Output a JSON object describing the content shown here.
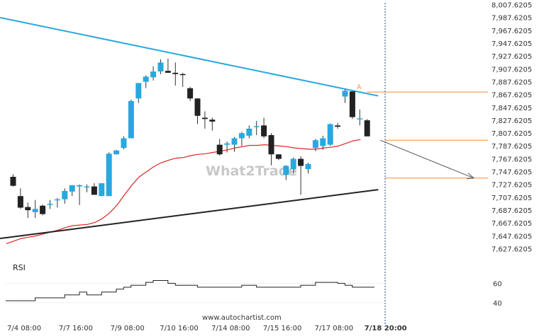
{
  "chart_data": {
    "type": "candlestick",
    "price_axis": {
      "min": 7627.6205,
      "max": 8007.6205,
      "step": 20,
      "tick_labels": [
        "8,007.6205",
        "7,987.6205",
        "7,967.6205",
        "7,947.6205",
        "7,927.6205",
        "7,907.6205",
        "7,887.6205",
        "7,867.6205",
        "7,847.6205",
        "7,827.6205",
        "7,807.6205",
        "7,787.6205",
        "7,767.6205",
        "7,747.6205",
        "7,727.6205",
        "7,707.6205",
        "7,687.6205",
        "7,667.6205",
        "7,647.6205",
        "7,627.6205"
      ]
    },
    "time_axis": {
      "labels": [
        "7/4 08:00",
        "7/7 16:00",
        "7/9 08:00",
        "7/10 16:00",
        "7/14 08:00",
        "7/15 16:00",
        "7/17 08:00",
        "7/18 20:00"
      ],
      "label_bar_index": [
        1.5,
        8.5,
        15.5,
        22.5,
        29.5,
        36.5,
        43.5,
        50.5
      ],
      "highlighted": "7/18 20:00"
    },
    "candles": [
      {
        "o": 7740,
        "h": 7744,
        "l": 7725,
        "c": 7726
      },
      {
        "o": 7710,
        "h": 7722,
        "l": 7690,
        "c": 7692
      },
      {
        "o": 7693,
        "h": 7700,
        "l": 7676,
        "c": 7688
      },
      {
        "o": 7685,
        "h": 7704,
        "l": 7676,
        "c": 7690
      },
      {
        "o": 7695,
        "h": 7697,
        "l": 7680,
        "c": 7682
      },
      {
        "o": 7697,
        "h": 7704,
        "l": 7690,
        "c": 7698
      },
      {
        "o": 7705,
        "h": 7707,
        "l": 7692,
        "c": 7705
      },
      {
        "o": 7705,
        "h": 7722,
        "l": 7698,
        "c": 7718
      },
      {
        "o": 7717,
        "h": 7727,
        "l": 7710,
        "c": 7727
      },
      {
        "o": 7725,
        "h": 7728,
        "l": 7696,
        "c": 7727
      },
      {
        "o": 7724,
        "h": 7728,
        "l": 7716,
        "c": 7725
      },
      {
        "o": 7725,
        "h": 7730,
        "l": 7714,
        "c": 7712
      },
      {
        "o": 7710,
        "h": 7730,
        "l": 7710,
        "c": 7730
      },
      {
        "o": 7710,
        "h": 7778,
        "l": 7710,
        "c": 7776
      },
      {
        "o": 7775,
        "h": 7782,
        "l": 7775,
        "c": 7781
      },
      {
        "o": 7785,
        "h": 7803,
        "l": 7783,
        "c": 7800
      },
      {
        "o": 7800,
        "h": 7860,
        "l": 7800,
        "c": 7858
      },
      {
        "o": 7862,
        "h": 7886,
        "l": 7855,
        "c": 7886
      },
      {
        "o": 7888,
        "h": 7898,
        "l": 7878,
        "c": 7896
      },
      {
        "o": 7895,
        "h": 7912,
        "l": 7890,
        "c": 7904
      },
      {
        "o": 7904,
        "h": 7923,
        "l": 7900,
        "c": 7918
      },
      {
        "o": 7905,
        "h": 7924,
        "l": 7902,
        "c": 7902
      },
      {
        "o": 7902,
        "h": 7918,
        "l": 7882,
        "c": 7900
      },
      {
        "o": 7900,
        "h": 7902,
        "l": 7880,
        "c": 7899
      },
      {
        "o": 7878,
        "h": 7880,
        "l": 7858,
        "c": 7862
      },
      {
        "o": 7862,
        "h": 7862,
        "l": 7822,
        "c": 7835
      },
      {
        "o": 7832,
        "h": 7842,
        "l": 7815,
        "c": 7830
      },
      {
        "o": 7829,
        "h": 7832,
        "l": 7812,
        "c": 7826
      },
      {
        "o": 7790,
        "h": 7799,
        "l": 7773,
        "c": 7775
      },
      {
        "o": 7790,
        "h": 7795,
        "l": 7778,
        "c": 7792
      },
      {
        "o": 7790,
        "h": 7802,
        "l": 7779,
        "c": 7800
      },
      {
        "o": 7800,
        "h": 7810,
        "l": 7788,
        "c": 7808
      },
      {
        "o": 7804,
        "h": 7820,
        "l": 7800,
        "c": 7815
      },
      {
        "o": 7818,
        "h": 7827,
        "l": 7805,
        "c": 7819
      },
      {
        "o": 7820,
        "h": 7832,
        "l": 7800,
        "c": 7803
      },
      {
        "o": 7805,
        "h": 7808,
        "l": 7758,
        "c": 7775
      },
      {
        "o": 7775,
        "h": 7775,
        "l": 7766,
        "c": 7768
      },
      {
        "o": 7743,
        "h": 7758,
        "l": 7735,
        "c": 7757
      },
      {
        "o": 7752,
        "h": 7770,
        "l": 7745,
        "c": 7768
      },
      {
        "o": 7768,
        "h": 7772,
        "l": 7712,
        "c": 7757
      },
      {
        "o": 7752,
        "h": 7762,
        "l": 7745,
        "c": 7760
      },
      {
        "o": 7785,
        "h": 7799,
        "l": 7780,
        "c": 7797
      },
      {
        "o": 7788,
        "h": 7804,
        "l": 7782,
        "c": 7800
      },
      {
        "o": 7790,
        "h": 7823,
        "l": 7788,
        "c": 7822
      },
      {
        "o": 7820,
        "h": 7824,
        "l": 7815,
        "c": 7818
      },
      {
        "o": 7865,
        "h": 7876,
        "l": 7855,
        "c": 7874
      },
      {
        "o": 7873,
        "h": 7873,
        "l": 7830,
        "c": 7833
      },
      {
        "o": 7830,
        "h": 7845,
        "l": 7820,
        "c": 7831
      },
      {
        "o": 7828,
        "h": 7830,
        "l": 7803,
        "c": 7803
      }
    ],
    "moving_average": {
      "color": "#e02424",
      "values": [
        7636,
        7640,
        7644,
        7646,
        7648,
        7651,
        7654,
        7657,
        7661,
        7664,
        7665,
        7666,
        7669,
        7675,
        7684,
        7696,
        7712,
        7727,
        7740,
        7748,
        7756,
        7762,
        7766,
        7769,
        7770,
        7773,
        7775,
        7776,
        7778,
        7780,
        7782,
        7785,
        7787,
        7789,
        7789,
        7790,
        7789,
        7788,
        7787,
        7785,
        7784,
        7783,
        7783,
        7785,
        7786,
        7788,
        7792,
        7796,
        7798
      ]
    },
    "resistance_line": {
      "color": "#29a8e0",
      "from": {
        "bar": -1,
        "price": 7988
      },
      "to": {
        "bar": 49.5,
        "price": 7866
      }
    },
    "support_line": {
      "color": "#222222",
      "from": {
        "bar": -1,
        "price": 7644
      },
      "to": {
        "bar": 49.5,
        "price": 7720
      }
    },
    "level_lines": {
      "color": "#f08c3c",
      "prices": [
        7872,
        7797,
        7738
      ]
    },
    "forecast_arrow": {
      "from": {
        "bar": 49.2,
        "price": 7797
      },
      "to": {
        "bar": 60.5,
        "price": 7738
      }
    },
    "pattern_point_label": "A",
    "candle_colors": {
      "up": "#29a8e0",
      "down": "#222222"
    },
    "rsi": {
      "label": "RSI",
      "levels": [
        60,
        40
      ],
      "range": [
        34,
        67
      ],
      "values": [
        42,
        42,
        42,
        42,
        45,
        45,
        45,
        45,
        48,
        48,
        51,
        48,
        48,
        51,
        51,
        54,
        56,
        58,
        58,
        61,
        63,
        63,
        60,
        58,
        58,
        58,
        56,
        56,
        56,
        56,
        56,
        56,
        58,
        58,
        56,
        56,
        56,
        56,
        56,
        56,
        58,
        58,
        61,
        61,
        61,
        60,
        58,
        56,
        56,
        56,
        56
      ]
    },
    "footer_text": "www.autochartist.com",
    "watermark_text": "What2Trade"
  }
}
